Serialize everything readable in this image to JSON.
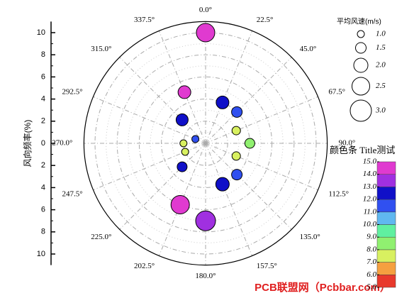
{
  "chart_data": {
    "type": "polar_bubble",
    "r_axis_label": "风向频率(%)",
    "size_legend_title": "平均风速(m/s)",
    "colorbar_title": "颜色条 Title测试",
    "watermark": "PCB联盟网（Pcbbar.com）",
    "rlim": [
      0,
      11
    ],
    "rticks": [
      0,
      2,
      4,
      6,
      8,
      10
    ],
    "rminor": [
      1,
      3,
      5,
      7,
      9
    ],
    "grid": true,
    "thetaticks": [
      {
        "value": 0,
        "label": "0.0°"
      },
      {
        "value": 22.5,
        "label": "22.5°"
      },
      {
        "value": 45,
        "label": "45.0°"
      },
      {
        "value": 67.5,
        "label": "67.5°"
      },
      {
        "value": 90,
        "label": "90.0°"
      },
      {
        "value": 112.5,
        "label": "112.5°"
      },
      {
        "value": 135,
        "label": "135.0°"
      },
      {
        "value": 157.5,
        "label": "157.5°"
      },
      {
        "value": 180,
        "label": "180.0°"
      },
      {
        "value": 202.5,
        "label": "202.5°"
      },
      {
        "value": 225,
        "label": "225.0°"
      },
      {
        "value": 247.5,
        "label": "247.5°"
      },
      {
        "value": 270,
        "label": "270.0°"
      },
      {
        "value": 292.5,
        "label": "292.5°"
      },
      {
        "value": 315,
        "label": "315.0°"
      },
      {
        "value": 337.5,
        "label": "337.5°"
      }
    ],
    "theta": [
      0,
      337.5,
      22.5,
      45,
      315,
      67.5,
      292.5,
      90,
      270,
      247.5,
      112.5,
      225,
      135,
      157.5,
      202.5,
      180
    ],
    "r": [
      10,
      5,
      4,
      4,
      3,
      3,
      1,
      4,
      2,
      2,
      3,
      3,
      4,
      4,
      6,
      7
    ],
    "size": [
      2.6,
      1.8,
      1.8,
      1.5,
      1.7,
      1.2,
      1.0,
      1.4,
      1.0,
      1.0,
      1.2,
      1.4,
      1.5,
      1.9,
      2.6,
      2.8
    ],
    "color_value": [
      14.5,
      14.5,
      12.5,
      11.5,
      12.5,
      7.5,
      11.5,
      8.5,
      7.5,
      7.5,
      7.5,
      12.5,
      11.5,
      12.5,
      14.5,
      13.5
    ],
    "size_legend": [
      {
        "value": 1.0,
        "label": "1.0"
      },
      {
        "value": 1.5,
        "label": "1.5"
      },
      {
        "value": 2.0,
        "label": "2.0"
      },
      {
        "value": 2.5,
        "label": "2.5"
      },
      {
        "value": 3.0,
        "label": "3.0"
      }
    ],
    "colorbar_ticks": [
      {
        "value": 5,
        "label": "5.0"
      },
      {
        "value": 6,
        "label": "6.0"
      },
      {
        "value": 7,
        "label": "7.0"
      },
      {
        "value": 8,
        "label": "8.0"
      },
      {
        "value": 9,
        "label": "9.0"
      },
      {
        "value": 10,
        "label": "10.0"
      },
      {
        "value": 11,
        "label": "11.0"
      },
      {
        "value": 12,
        "label": "12.0"
      },
      {
        "value": 13,
        "label": "13.0"
      },
      {
        "value": 14,
        "label": "14.0"
      },
      {
        "value": 15,
        "label": "15.0"
      }
    ],
    "colorbar_colors": [
      "#e8392c",
      "#f5a040",
      "#d8f060",
      "#90f070",
      "#60f0a0",
      "#60b8f0",
      "#3050f0",
      "#1010c8",
      "#a030e0",
      "#e03ad0"
    ]
  }
}
